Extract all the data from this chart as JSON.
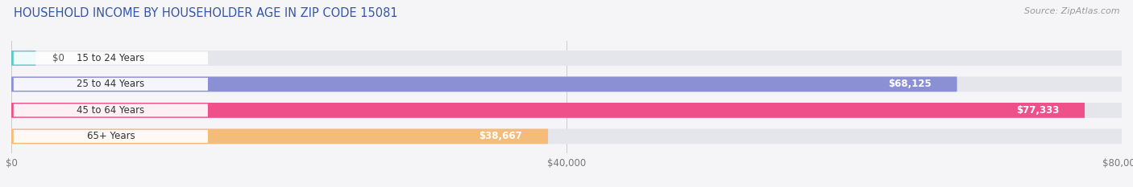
{
  "title": "HOUSEHOLD INCOME BY HOUSEHOLDER AGE IN ZIP CODE 15081",
  "source": "Source: ZipAtlas.com",
  "categories": [
    "15 to 24 Years",
    "25 to 44 Years",
    "45 to 64 Years",
    "65+ Years"
  ],
  "values": [
    0,
    68125,
    77333,
    38667
  ],
  "bar_colors": [
    "#5bc8c8",
    "#8b8fd4",
    "#f0508a",
    "#f5bb78"
  ],
  "bar_labels": [
    "$0",
    "$68,125",
    "$77,333",
    "$38,667"
  ],
  "xlim": [
    0,
    80000
  ],
  "xticklabels": [
    "$0",
    "$40,000",
    "$80,000"
  ],
  "xtick_values": [
    0,
    40000,
    80000
  ],
  "background_color": "#f5f5f8",
  "bar_bg_color": "#e5e5ec",
  "title_color": "#3355aa",
  "source_color": "#999999",
  "title_fontsize": 10.5,
  "source_fontsize": 8,
  "label_fontsize": 8.5,
  "tick_fontsize": 8.5,
  "category_fontsize": 8.5
}
